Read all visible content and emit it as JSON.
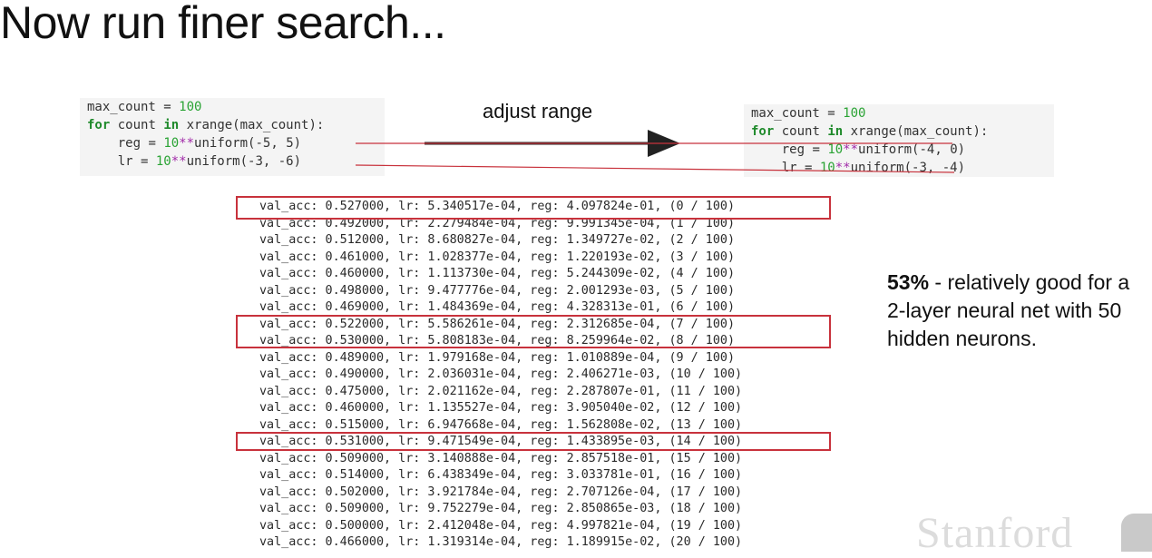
{
  "slide": {
    "title": "Now run finer search...",
    "arrow_label": "adjust range",
    "note_bold": "53%",
    "note_rest": " - relatively good for a 2-layer neural net with 50 hidden neurons.",
    "watermark": "Stanford",
    "highlight_color": "#c8323c",
    "code_left": {
      "l1": {
        "var": "max_count",
        "eq": " = ",
        "val": "100"
      },
      "l2": {
        "kw1": "for",
        "mid": " count ",
        "kw2": "in",
        "call": " xrange(max_count):"
      },
      "l3": {
        "indent": "    ",
        "var": "reg",
        "eq": " = ",
        "base": "10",
        "pow": "**",
        "fn": "uniform(",
        "a": "-5",
        "sep": ", ",
        "b": "5",
        "end": ")"
      },
      "l4": {
        "indent": "    ",
        "var": "lr",
        "eq": " = ",
        "base": "10",
        "pow": "**",
        "fn": "uniform(",
        "a": "-3",
        "sep": ", ",
        "b": "-6",
        "end": ")"
      }
    },
    "code_right": {
      "l1": {
        "var": "max_count",
        "eq": " = ",
        "val": "100"
      },
      "l2": {
        "kw1": "for",
        "mid": " count ",
        "kw2": "in",
        "call": " xrange(max_count):"
      },
      "l3": {
        "indent": "    ",
        "var": "reg",
        "eq": " = ",
        "base": "10",
        "pow": "**",
        "fn": "uniform(",
        "a": "-4",
        "sep": ", ",
        "b": "0",
        "end": ")"
      },
      "l4": {
        "indent": "    ",
        "var": "lr",
        "eq": " = ",
        "base": "10",
        "pow": "**",
        "fn": "uniform(",
        "a": "-3",
        "sep": ", ",
        "b": "-4",
        "end": ")"
      }
    },
    "log_rows": [
      "val_acc: 0.527000, lr: 5.340517e-04, reg: 4.097824e-01, (0 / 100)",
      "val_acc: 0.492000, lr: 2.279484e-04, reg: 9.991345e-04, (1 / 100)",
      "val_acc: 0.512000, lr: 8.680827e-04, reg: 1.349727e-02, (2 / 100)",
      "val_acc: 0.461000, lr: 1.028377e-04, reg: 1.220193e-02, (3 / 100)",
      "val_acc: 0.460000, lr: 1.113730e-04, reg: 5.244309e-02, (4 / 100)",
      "val_acc: 0.498000, lr: 9.477776e-04, reg: 2.001293e-03, (5 / 100)",
      "val_acc: 0.469000, lr: 1.484369e-04, reg: 4.328313e-01, (6 / 100)",
      "val_acc: 0.522000, lr: 5.586261e-04, reg: 2.312685e-04, (7 / 100)",
      "val_acc: 0.530000, lr: 5.808183e-04, reg: 8.259964e-02, (8 / 100)",
      "val_acc: 0.489000, lr: 1.979168e-04, reg: 1.010889e-04, (9 / 100)",
      "val_acc: 0.490000, lr: 2.036031e-04, reg: 2.406271e-03, (10 / 100)",
      "val_acc: 0.475000, lr: 2.021162e-04, reg: 2.287807e-01, (11 / 100)",
      "val_acc: 0.460000, lr: 1.135527e-04, reg: 3.905040e-02, (12 / 100)",
      "val_acc: 0.515000, lr: 6.947668e-04, reg: 1.562808e-02, (13 / 100)",
      "val_acc: 0.531000, lr: 9.471549e-04, reg: 1.433895e-03, (14 / 100)",
      "val_acc: 0.509000, lr: 3.140888e-04, reg: 2.857518e-01, (15 / 100)",
      "val_acc: 0.514000, lr: 6.438349e-04, reg: 3.033781e-01, (16 / 100)",
      "val_acc: 0.502000, lr: 3.921784e-04, reg: 2.707126e-04, (17 / 100)",
      "val_acc: 0.509000, lr: 9.752279e-04, reg: 2.850865e-03, (18 / 100)",
      "val_acc: 0.500000, lr: 2.412048e-04, reg: 4.997821e-04, (19 / 100)",
      "val_acc: 0.466000, lr: 1.319314e-04, reg: 1.189915e-02, (20 / 100)"
    ]
  }
}
